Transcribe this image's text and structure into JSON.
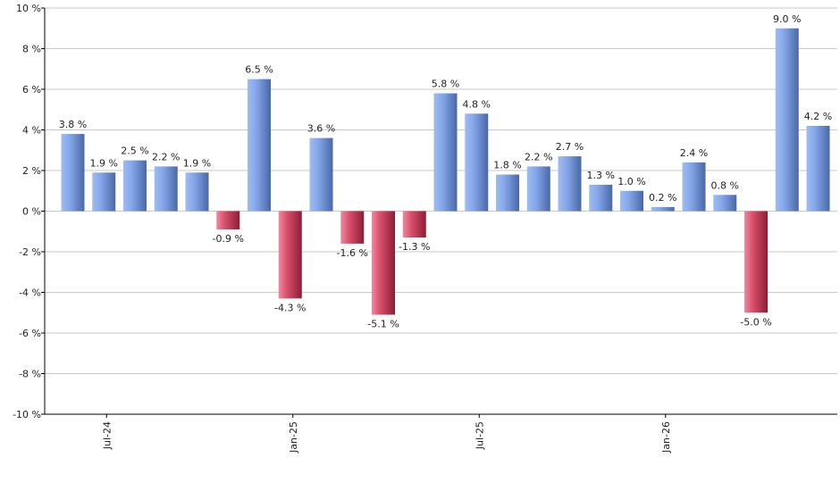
{
  "chart_data": {
    "type": "bar",
    "title": "",
    "xlabel": "",
    "ylabel": "",
    "ylim": [
      -10,
      10
    ],
    "y_ticks": [
      10,
      8,
      6,
      4,
      2,
      0,
      -2,
      -4,
      -6,
      -8,
      -10
    ],
    "y_tick_format": "{v} %",
    "grid": true,
    "values": [
      3.8,
      1.9,
      2.5,
      2.2,
      1.9,
      -0.9,
      6.5,
      -4.3,
      3.6,
      -1.6,
      -5.1,
      -1.3,
      5.8,
      4.8,
      1.8,
      2.2,
      2.7,
      1.3,
      1.0,
      0.2,
      2.4,
      0.8,
      -5.0,
      9.0,
      4.2
    ],
    "data_labels": [
      "3.8 %",
      "1.9 %",
      "2.5 %",
      "2.2 %",
      "1.9 %",
      "-0.9 %",
      "6.5 %",
      "-4.3 %",
      "3.6 %",
      "-1.6 %",
      "-5.1 %",
      "-1.3 %",
      "5.8 %",
      "4.8 %",
      "1.8 %",
      "2.2 %",
      "2.7 %",
      "1.3 %",
      "1.0 %",
      "0.2 %",
      "2.4 %",
      "0.8 %",
      "-5.0 %",
      "9.0 %",
      "4.2 %"
    ],
    "x_tick_labels": [
      {
        "label": "Jul-24",
        "bar_index": 1
      },
      {
        "label": "Jan-25",
        "bar_index": 7
      },
      {
        "label": "Jul-25",
        "bar_index": 13
      },
      {
        "label": "Jan-26",
        "bar_index": 19
      }
    ],
    "colors": {
      "positive": "#6b93dd",
      "positive_light": "#a9c4f2",
      "positive_dark": "#4a6db5",
      "negative": "#c4344f",
      "negative_light": "#f29aab",
      "negative_dark": "#a0233d",
      "grid": "#c8c8c8",
      "axis": "#000000"
    }
  }
}
